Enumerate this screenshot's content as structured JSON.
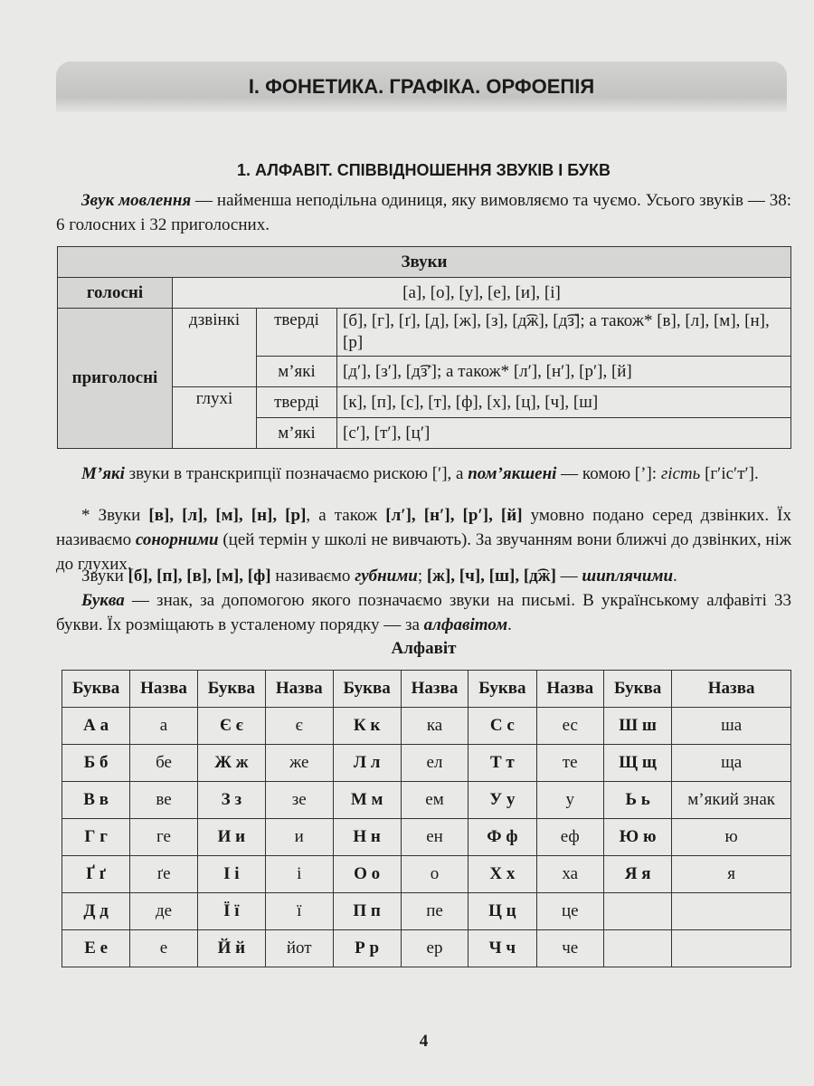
{
  "header": {
    "chapter": "І. ФОНЕТИКА. ГРАФІКА. ОРФОЕПІЯ"
  },
  "section": {
    "title": "1. АЛФАВІТ. СПІВВІДНОШЕННЯ ЗВУКІВ І БУКВ"
  },
  "paragraphs": [
    [
      "Звук мовлення",
      " — найменша неподільна одиниця, яку вимовляємо та чуємо. Усього звуків — 38: 6 голосних і 32 приголосних."
    ],
    [
      "М’які",
      " звуки в транскрипції позначаємо рискою [′], а ",
      "пом’якшені",
      " — комою [’]: ",
      "гість",
      " [г′іс′т′]."
    ],
    [
      "* Звуки ",
      "[в], [л], [м], [н], [р]",
      ", а також ",
      "[л′], [н′], [р′], [й]",
      " умовно подано серед дзвінких. Їх називаємо ",
      "сонорними",
      " (цей термін у школі не вивчають). За звучанням вони ближчі до дзвінких, ніж до глухих."
    ],
    [
      "Звуки ",
      "[б], [п], [в], [м], [ф]",
      " називаємо ",
      "губними",
      "; ",
      "[ж], [ч], [ш], [д͡ж]",
      " — ",
      "шиплячими",
      "."
    ],
    [
      "Буква",
      " — знак, за допомогою якого позначаємо звуки на письмі. В українському алфавіті 33 букви. Їх розміщають в усталеному порядку — за ",
      "алфавітом",
      "."
    ]
  ],
  "sounds_table": {
    "title": "Звуки",
    "vowels": {
      "label": "голосні",
      "value": "[а], [о], [у], [е], [и], [і]"
    },
    "consonants": {
      "label": "приголосні",
      "voiced": {
        "label": "дзвінкі",
        "hard_label": "тверді",
        "hard": "[б], [г], [ґ], [д], [ж], [з], [д͡ж], [д͡з]; а також* [в], [л], [м], [н], [р]",
        "soft_label": "м’які",
        "soft": "[д′], [з′], [д͡з′]; а також* [л′], [н′], [р′], [й]"
      },
      "voiceless": {
        "label": "глухі",
        "hard_label": "тверді",
        "hard": "[к], [п], [с], [т], [ф], [х], [ц], [ч], [ш]",
        "soft_label": "м’які",
        "soft": "[с′], [т′], [ц′]"
      }
    }
  },
  "alphabet": {
    "title": "Алфавіт",
    "header": [
      "Буква",
      "Назва",
      "Буква",
      "Назва",
      "Буква",
      "Назва",
      "Буква",
      "Назва",
      "Буква",
      "Назва"
    ],
    "rows": [
      [
        "А а",
        "а",
        "Є є",
        "є",
        "К к",
        "ка",
        "С с",
        "ес",
        "Ш ш",
        "ша"
      ],
      [
        "Б б",
        "бе",
        "Ж ж",
        "же",
        "Л л",
        "ел",
        "Т т",
        "те",
        "Щ щ",
        "ща"
      ],
      [
        "В в",
        "ве",
        "З з",
        "зе",
        "М м",
        "ем",
        "У у",
        "у",
        "Ь ь",
        "м’який знак"
      ],
      [
        "Г г",
        "ге",
        "И и",
        "и",
        "Н н",
        "ен",
        "Ф ф",
        "еф",
        "Ю ю",
        "ю"
      ],
      [
        "Ґ ґ",
        "ґе",
        "І і",
        "і",
        "О о",
        "о",
        "Х х",
        "ха",
        "Я я",
        "я"
      ],
      [
        "Д д",
        "де",
        "Ї ї",
        "ї",
        "П п",
        "пе",
        "Ц ц",
        "це"
      ],
      [
        "Е е",
        "е",
        "Й й",
        "йот",
        "Р р",
        "ер",
        "Ч ч",
        "че"
      ]
    ]
  },
  "page_number": "4"
}
